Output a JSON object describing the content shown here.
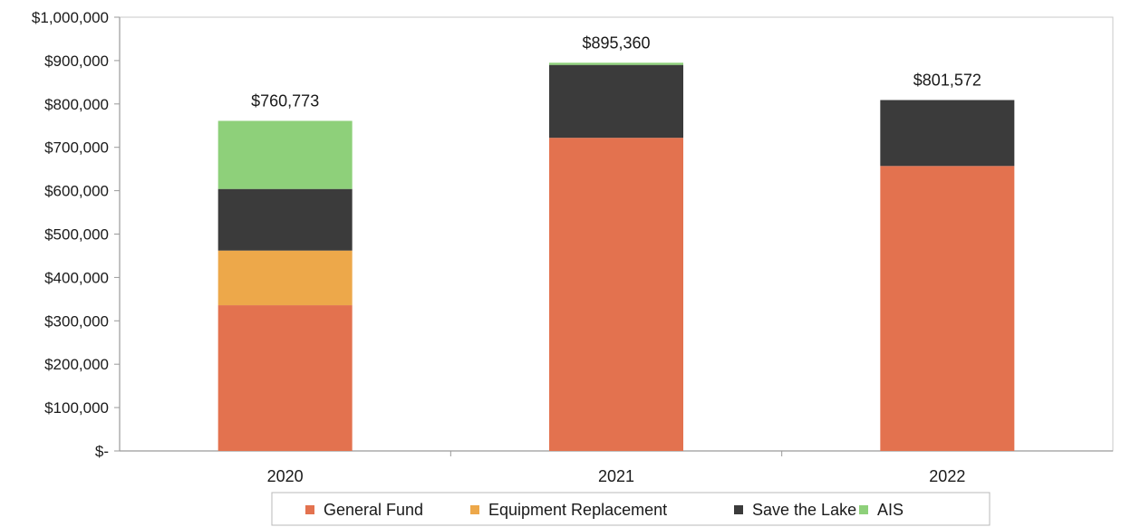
{
  "chart_data": {
    "type": "bar",
    "stacked": true,
    "categories": [
      "2020",
      "2021",
      "2022"
    ],
    "series": [
      {
        "name": "General Fund",
        "color": "#e3724f",
        "values": [
          336000,
          722000,
          657000
        ]
      },
      {
        "name": "Equipment Replacement",
        "color": "#eda84a",
        "values": [
          126000,
          0,
          0
        ]
      },
      {
        "name": "Save the Lake",
        "color": "#3b3b3b",
        "values": [
          142000,
          168000,
          152000
        ]
      },
      {
        "name": "AIS",
        "color": "#8ed07a",
        "values": [
          157000,
          5000,
          0
        ]
      }
    ],
    "totals": [
      "$760,773",
      "$895,360",
      "$801,572"
    ],
    "ylim": [
      0,
      1000000
    ],
    "yticks": [
      0,
      100000,
      200000,
      300000,
      400000,
      500000,
      600000,
      700000,
      800000,
      900000,
      1000000
    ],
    "ytick_labels": [
      "$-",
      "$100,000",
      "$200,000",
      "$300,000",
      "$400,000",
      "$500,000",
      "$600,000",
      "$700,000",
      "$800,000",
      "$900,000",
      "$1,000,000"
    ],
    "grid": false,
    "legend_position": "bottom",
    "title": "",
    "xlabel": "",
    "ylabel": ""
  }
}
